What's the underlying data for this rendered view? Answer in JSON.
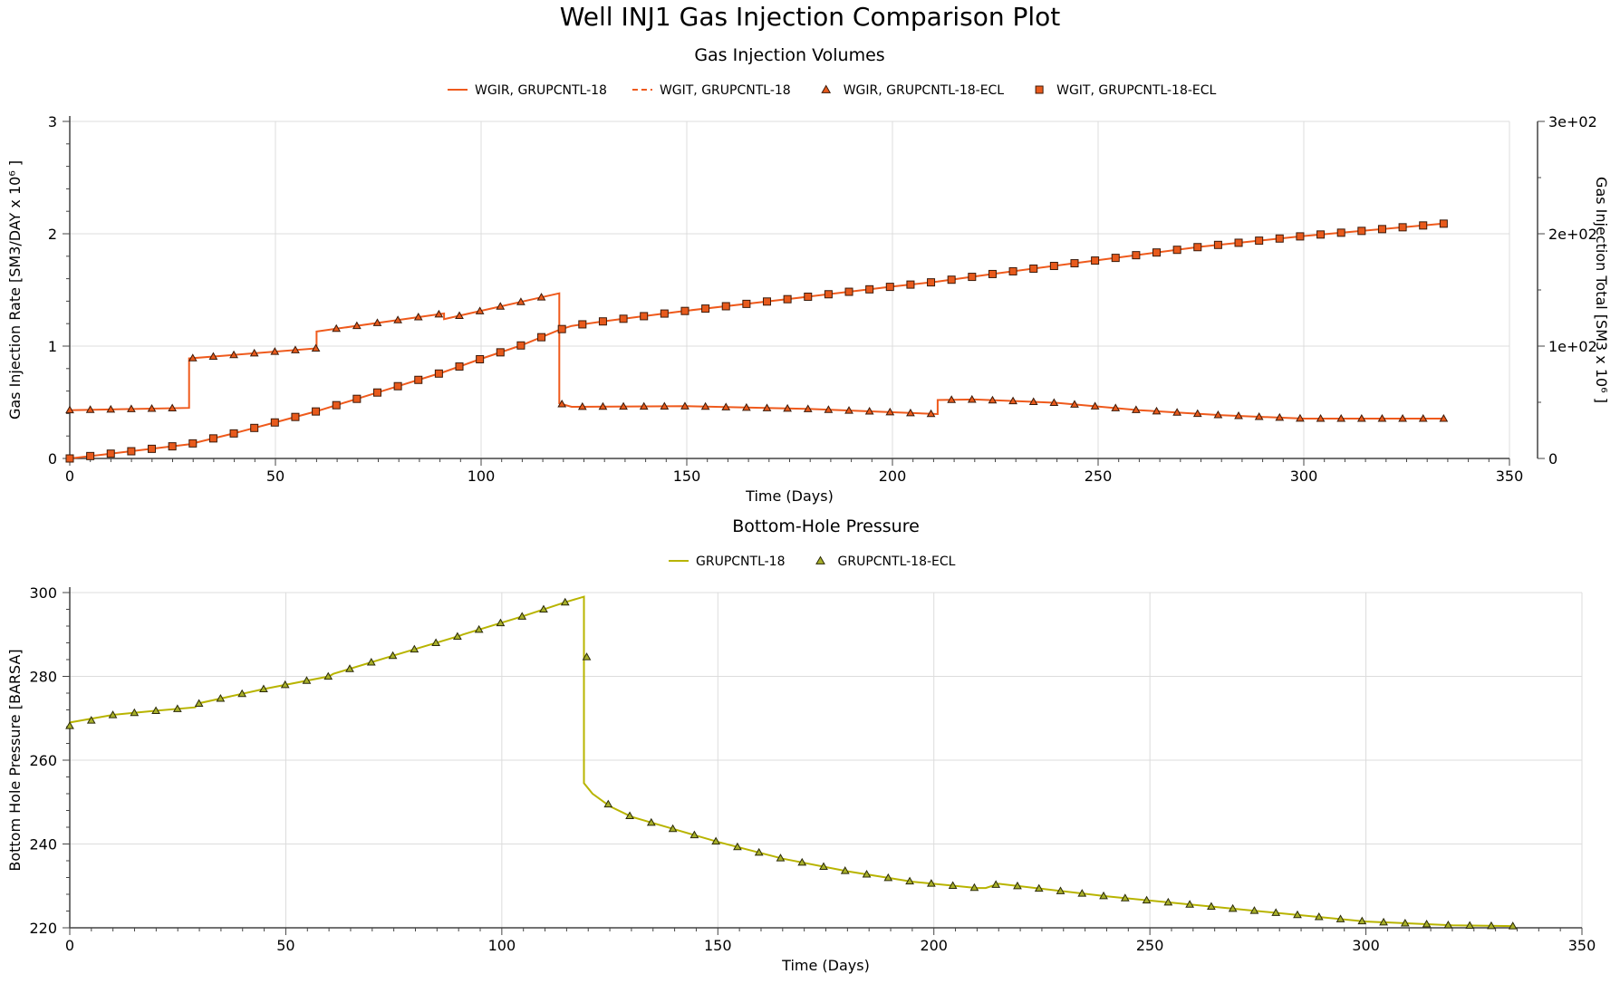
{
  "title": "Well INJ1 Gas Injection Comparison Plot",
  "chart_data": [
    {
      "type": "line",
      "title": "Gas Injection Volumes",
      "xlabel": "Time (Days)",
      "ylabel": "Gas Injection Rate [SM3/DAY x 10⁶ ]",
      "y2label": "Gas Injection Total [SM3 x 10⁶ ]",
      "xlim": [
        0,
        350
      ],
      "ylim": [
        0,
        3
      ],
      "y2lim": [
        0,
        300
      ],
      "xticks": [
        "0",
        "50",
        "100",
        "150",
        "200",
        "250",
        "300",
        "350"
      ],
      "yticks": [
        "0",
        "1",
        "2",
        "3"
      ],
      "y2ticks": [
        "0",
        "1e+02",
        "2e+02",
        "3e+02"
      ],
      "grid": true,
      "legend_position": "top",
      "colors": {
        "rate": "#ef5a1c",
        "total": "#ef5a1c",
        "marker_fill": "#e85a1c",
        "marker_stroke": "#3a1a0a"
      },
      "legend": [
        {
          "name": "WGIR, GRUPCNTL-18",
          "style": "solid-line"
        },
        {
          "name": "WGIT, GRUPCNTL-18",
          "style": "dashed-line"
        },
        {
          "name": "WGIR, GRUPCNTL-18-ECL",
          "style": "triangle-marker"
        },
        {
          "name": "WGIT, GRUPCNTL-18-ECL",
          "style": "square-marker"
        }
      ],
      "series": [
        {
          "name": "WGIR, GRUPCNTL-18",
          "axis": "left",
          "step": true,
          "x": [
            0,
            29,
            29,
            60,
            60,
            91,
            91,
            119,
            119,
            122,
            150,
            180,
            211,
            211,
            220,
            240,
            260,
            280,
            300,
            334
          ],
          "y": [
            0.43,
            0.45,
            0.89,
            0.98,
            1.13,
            1.29,
            1.24,
            1.47,
            0.49,
            0.46,
            0.465,
            0.44,
            0.395,
            0.52,
            0.525,
            0.495,
            0.43,
            0.385,
            0.355,
            0.355
          ]
        },
        {
          "name": "WGIT, GRUPCNTL-18",
          "axis": "right",
          "x": [
            0,
            10,
            20,
            29,
            40,
            50,
            60,
            70,
            80,
            91,
            100,
            110,
            119,
            122,
            130,
            150,
            175,
            200,
            211,
            225,
            250,
            275,
            300,
            334
          ],
          "y": [
            0,
            4.3,
            8.6,
            12.6,
            22.4,
            32.2,
            42.0,
            53.3,
            64.6,
            77.0,
            88.7,
            101.0,
            114.4,
            118.0,
            122.2,
            131.5,
            142.0,
            153.0,
            157.4,
            164.5,
            176.5,
            188.5,
            198.0,
            209.0
          ]
        },
        {
          "name": "WGIR, GRUPCNTL-18-ECL",
          "axis": "left",
          "marker": "triangle",
          "step": true,
          "x": [
            0,
            29,
            29,
            60,
            60,
            91,
            91,
            119,
            119,
            122,
            150,
            180,
            211,
            211,
            220,
            240,
            260,
            280,
            300,
            334
          ],
          "y": [
            0.43,
            0.45,
            0.89,
            0.98,
            1.13,
            1.29,
            1.24,
            1.47,
            0.49,
            0.46,
            0.465,
            0.44,
            0.395,
            0.52,
            0.525,
            0.495,
            0.43,
            0.385,
            0.355,
            0.355
          ]
        },
        {
          "name": "WGIT, GRUPCNTL-18-ECL",
          "axis": "right",
          "marker": "square",
          "x": [
            0,
            10,
            20,
            29,
            40,
            50,
            60,
            70,
            80,
            91,
            100,
            110,
            119,
            122,
            130,
            150,
            175,
            200,
            211,
            225,
            250,
            275,
            300,
            334
          ],
          "y": [
            0,
            4.3,
            8.6,
            12.6,
            22.4,
            32.2,
            42.0,
            53.3,
            64.6,
            77.0,
            88.7,
            101.0,
            114.4,
            118.0,
            122.2,
            131.5,
            142.0,
            153.0,
            157.4,
            164.5,
            176.5,
            188.5,
            198.0,
            209.0
          ]
        }
      ]
    },
    {
      "type": "line",
      "title": "Bottom-Hole Pressure",
      "xlabel": "Time (Days)",
      "ylabel": "Bottom Hole Pressure [BARSA]",
      "xlim": [
        0,
        350
      ],
      "ylim": [
        220,
        300
      ],
      "xticks": [
        "0",
        "50",
        "100",
        "150",
        "200",
        "250",
        "300",
        "350"
      ],
      "yticks": [
        "220",
        "240",
        "260",
        "280",
        "300"
      ],
      "grid": true,
      "legend_position": "top",
      "colors": {
        "line": "#b8b400",
        "marker_fill": "#a8b02a",
        "marker_stroke": "#2a2a08"
      },
      "legend": [
        {
          "name": "GRUPCNTL-18",
          "style": "solid-line"
        },
        {
          "name": "GRUPCNTL-18-ECL",
          "style": "triangle-marker"
        }
      ],
      "series": [
        {
          "name": "GRUPCNTL-18",
          "x": [
            0,
            10,
            20,
            29,
            30,
            45,
            60,
            61,
            75,
            90,
            91,
            105,
            115,
            119,
            119,
            121,
            125,
            130,
            140,
            150,
            165,
            180,
            195,
            210,
            212,
            215,
            240,
            270,
            300,
            320,
            334
          ],
          "y": [
            269,
            270.8,
            271.8,
            272.6,
            273.6,
            277,
            280,
            280.6,
            285,
            289.6,
            290,
            294.4,
            297.8,
            299,
            254.5,
            252,
            249,
            246.5,
            243.5,
            240.5,
            236.5,
            233.5,
            231,
            229.5,
            229.5,
            230.5,
            227.5,
            224.5,
            221.5,
            220.6,
            220.4
          ]
        },
        {
          "name": "GRUPCNTL-18-ECL",
          "marker": "triangle",
          "x": [
            0,
            10,
            20,
            29,
            30,
            45,
            60,
            61,
            75,
            90,
            91,
            105,
            115,
            119,
            121,
            125,
            130,
            140,
            150,
            165,
            180,
            195,
            210,
            212,
            215,
            240,
            270,
            300,
            320,
            334
          ],
          "y": [
            268.2,
            270.8,
            271.8,
            272.6,
            273.6,
            277,
            280,
            280.6,
            285,
            289.6,
            290,
            294.4,
            297.8,
            299,
            254.2,
            249,
            246.5,
            243.5,
            240.5,
            236.5,
            233.5,
            231,
            229.5,
            229.5,
            230.5,
            227.5,
            224.5,
            221.5,
            220.6,
            220.4
          ]
        }
      ]
    }
  ]
}
